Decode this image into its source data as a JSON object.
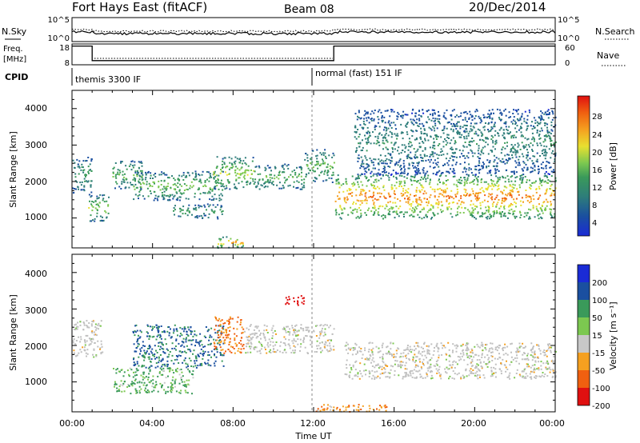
{
  "header": {
    "title": "Fort Hays East (fitACF)",
    "beam": "Beam 08",
    "date": "20/Dec/2014"
  },
  "panels": {
    "sky": {
      "left_label": "N.Sky",
      "right_label": "N.Search",
      "left_ticks": [
        "10^5",
        "10^0"
      ],
      "right_ticks": [
        "10^5",
        "10^0"
      ]
    },
    "freq": {
      "left_label_1": "Freq.",
      "left_label_2": "[MHz]",
      "right_label": "Nave",
      "left_ticks": [
        "18",
        "8"
      ],
      "right_ticks": [
        "60",
        "0"
      ]
    },
    "cpid": {
      "label": "CPID",
      "segments": [
        "themis 3300 IF",
        "normal (fast) 151 IF"
      ]
    },
    "power": {
      "ylabel": "Slant Range [km]",
      "yticks": [
        "4000",
        "3000",
        "2000",
        "1000"
      ],
      "cbar_label": "Power [dB]",
      "cbar_ticks": [
        "28",
        "24",
        "20",
        "16",
        "12",
        "8",
        "4"
      ]
    },
    "velocity": {
      "ylabel": "Slant Range [km]",
      "yticks": [
        "4000",
        "3000",
        "2000",
        "1000"
      ],
      "cbar_label": "Velocity [m s⁻¹]",
      "cbar_ticks": [
        "200",
        "100",
        "50",
        "15",
        "-15",
        "-50",
        "-100",
        "-200"
      ]
    }
  },
  "xaxis": {
    "label": "Time UT",
    "ticks": [
      "00:00",
      "04:00",
      "08:00",
      "12:00",
      "16:00",
      "20:00",
      "00:00"
    ]
  },
  "colors": {
    "power_scale": [
      "#1a2bd6",
      "#1a4fa0",
      "#2e7d7a",
      "#3a9a5a",
      "#7cc850",
      "#e8e030",
      "#f5a020",
      "#f06010",
      "#e01010"
    ],
    "velocity_scale": [
      "#e01010",
      "#f06010",
      "#f5a020",
      "#c8c8c8",
      "#c8c8c8",
      "#7cc850",
      "#3a9a5a",
      "#1a4fa0",
      "#1a2bd6"
    ],
    "ground_scatter": "#c0c0c0"
  },
  "chart_data": {
    "type": "heatmap",
    "title": "Fort Hays East (fitACF)",
    "xlabel": "Time UT",
    "ylabel": "Slant Range [km]",
    "xlim_hours": [
      0,
      24
    ],
    "ylim_km": [
      180,
      4500
    ],
    "beam": "Beam 08",
    "date": "20/Dec/2014",
    "power_colorbar": {
      "label": "Power [dB]",
      "range": [
        0,
        30
      ],
      "ticks": [
        4,
        8,
        12,
        16,
        20,
        24,
        28
      ]
    },
    "velocity_colorbar": {
      "label": "Velocity [m s⁻¹]",
      "range": [
        -250,
        250
      ],
      "ticks": [
        -200,
        -100,
        -50,
        -15,
        15,
        50,
        100,
        200
      ]
    },
    "cpid_segments": [
      {
        "name": "themis 3300 IF",
        "start_hour": 0,
        "end_hour": 12
      },
      {
        "name": "normal (fast) 151 IF",
        "start_hour": 12,
        "end_hour": 24
      }
    ],
    "frequency_mhz": [
      {
        "start_hour": 0,
        "end_hour": 1,
        "value": 17
      },
      {
        "start_hour": 1,
        "end_hour": 13,
        "value": 10
      },
      {
        "start_hour": 13,
        "end_hour": 24,
        "value": 17
      }
    ],
    "power_echoes": [
      {
        "t0": 0,
        "t1": 1,
        "r0": 1700,
        "r1": 2700,
        "power_db": 10
      },
      {
        "t0": 0.8,
        "t1": 1.8,
        "r0": 900,
        "r1": 1700,
        "power_db": 14
      },
      {
        "t0": 2,
        "t1": 3.5,
        "r0": 1800,
        "r1": 2600,
        "power_db": 12
      },
      {
        "t0": 3,
        "t1": 7.5,
        "r0": 1500,
        "r1": 2300,
        "power_db": 13
      },
      {
        "t0": 5,
        "t1": 7.5,
        "r0": 1000,
        "r1": 1400,
        "power_db": 10
      },
      {
        "t0": 7,
        "t1": 9,
        "r0": 1800,
        "r1": 2700,
        "power_db": 15
      },
      {
        "t0": 9,
        "t1": 11.5,
        "r0": 1800,
        "r1": 2500,
        "power_db": 12
      },
      {
        "t0": 11.5,
        "t1": 13,
        "r0": 2000,
        "r1": 2900,
        "power_db": 12
      },
      {
        "t0": 13,
        "t1": 24,
        "r0": 1000,
        "r1": 2200,
        "power_db": 22
      },
      {
        "t0": 14,
        "t1": 24,
        "r0": 2200,
        "r1": 4000,
        "power_db": 8
      },
      {
        "t0": 7,
        "t1": 8.5,
        "r0": 200,
        "r1": 500,
        "power_db": 20
      }
    ],
    "velocity_echoes": [
      {
        "t0": 0,
        "t1": 1.5,
        "r0": 1700,
        "r1": 2700,
        "velocity": 0
      },
      {
        "t0": 3,
        "t1": 7.5,
        "r0": 1400,
        "r1": 2600,
        "velocity": 80
      },
      {
        "t0": 2,
        "t1": 6,
        "r0": 700,
        "r1": 1400,
        "velocity": 40
      },
      {
        "t0": 7,
        "t1": 8.5,
        "r0": 1800,
        "r1": 2800,
        "velocity": -60
      },
      {
        "t0": 8.5,
        "t1": 13,
        "r0": 1800,
        "r1": 2600,
        "velocity": 0
      },
      {
        "t0": 10.5,
        "t1": 11.5,
        "r0": 3100,
        "r1": 3400,
        "velocity": -150
      },
      {
        "t0": 13.5,
        "t1": 24,
        "r0": 1100,
        "r1": 2100,
        "velocity": 0
      },
      {
        "t0": 12,
        "t1": 16,
        "r0": 200,
        "r1": 400,
        "velocity": -40
      }
    ]
  }
}
